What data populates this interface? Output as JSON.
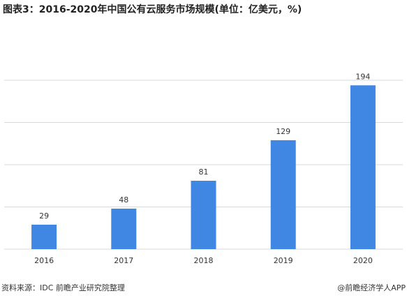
{
  "chart_data": {
    "type": "bar",
    "title": "图表3：2016-2020年中国公有云服务市场规模(单位：亿美元，%)",
    "categories": [
      "2016",
      "2017",
      "2018",
      "2019",
      "2020"
    ],
    "values": [
      29,
      48,
      81,
      129,
      194
    ],
    "color": "#3f87e2",
    "ylim": [
      0,
      200
    ],
    "yticks": [
      0,
      50,
      100,
      150,
      200
    ],
    "grid": true,
    "source": "资料来源：IDC 前瞻产业研究院整理",
    "credit": "@前瞻经济学人APP"
  }
}
